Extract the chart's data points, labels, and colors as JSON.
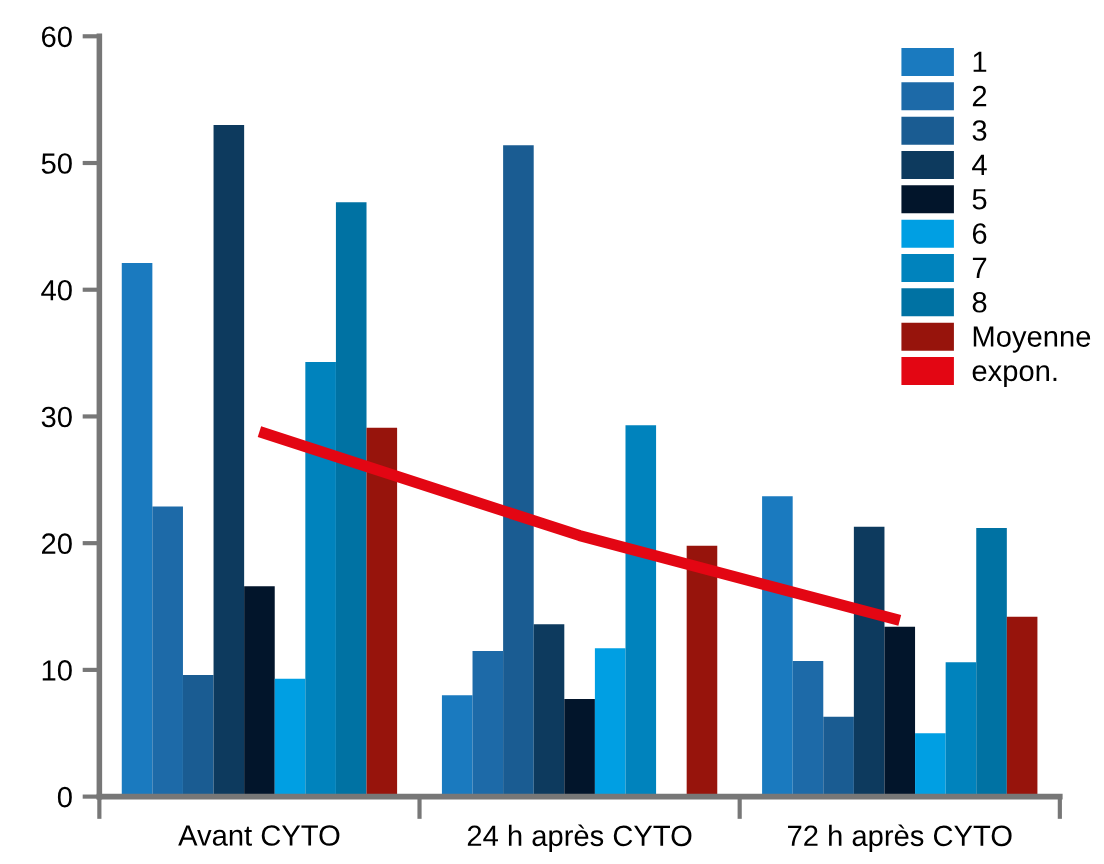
{
  "chart_data": {
    "type": "bar",
    "categories": [
      "Avant CYTO",
      "24 h après CYTO",
      "72 h après CYTO"
    ],
    "series": [
      {
        "name": "1",
        "color": "#1a7abf",
        "values": [
          42.1,
          8.0,
          23.7
        ]
      },
      {
        "name": "2",
        "color": "#1d6aa8",
        "values": [
          22.9,
          11.5,
          10.7
        ]
      },
      {
        "name": "3",
        "color": "#1a5c92",
        "values": [
          9.6,
          51.4,
          6.3
        ]
      },
      {
        "name": "4",
        "color": "#0d3a5e",
        "values": [
          53.0,
          13.6,
          21.3
        ]
      },
      {
        "name": "5",
        "color": "#02152b",
        "values": [
          16.6,
          7.7,
          13.4
        ]
      },
      {
        "name": "6",
        "color": "#009fe3",
        "values": [
          9.3,
          11.7,
          5.0
        ]
      },
      {
        "name": "7",
        "color": "#0083bd",
        "values": [
          34.3,
          29.3,
          10.6
        ]
      },
      {
        "name": "8",
        "color": "#0072a3",
        "values": [
          46.9,
          null,
          21.2
        ]
      },
      {
        "name": "Moyenne",
        "color": "#97140c",
        "values": [
          29.1,
          19.8,
          14.2
        ]
      },
      {
        "name": "expon.",
        "type": "line",
        "color": "#e30613",
        "x": [
          "Avant CYTO",
          "24 h après CYTO",
          "72 h après CYTO"
        ],
        "values": [
          28.8,
          20.6,
          13.9
        ]
      }
    ],
    "ylim": [
      0,
      60
    ],
    "yticks": [
      0,
      10,
      20,
      30,
      40,
      50,
      60
    ],
    "legend": "top right",
    "grid": false
  }
}
